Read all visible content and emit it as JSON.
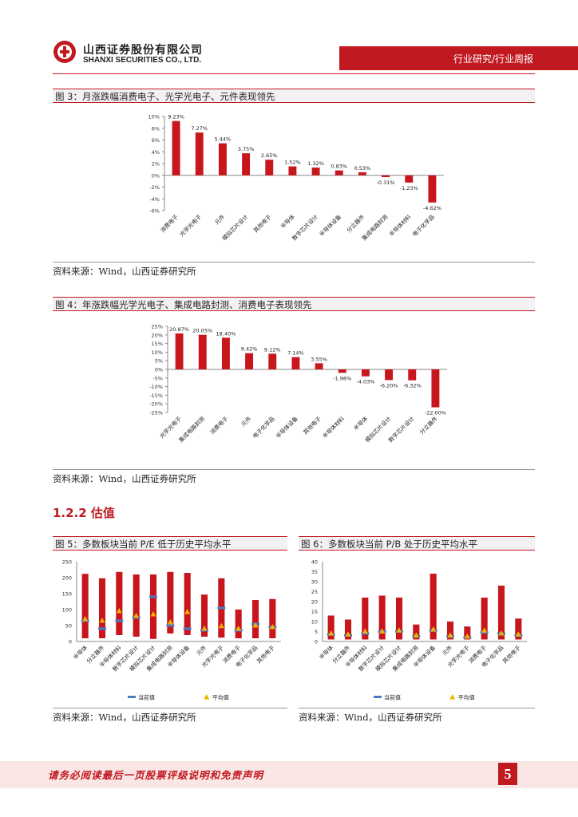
{
  "header": {
    "company_cn": "山西证券股份有限公司",
    "company_en": "SHANXI SECURITIES CO., LTD.",
    "category": "行业研究/行业周报"
  },
  "fig3": {
    "caption": "图 3：月涨跌幅消费电子、光学光电子、元件表现领先",
    "source": "资料来源：Wind，山西证券研究所"
  },
  "fig4": {
    "caption": "图 4：年涨跌幅光学光电子、集成电路封测、消费电子表现领先",
    "source": "资料来源：Wind，山西证券研究所"
  },
  "section": {
    "title": "1.2.2  估值"
  },
  "fig5": {
    "caption": "图 5：多数板块当前 P/E 低于历史平均水平",
    "source": "资料来源：Wind，山西证券研究所"
  },
  "fig6": {
    "caption": "图 6：多数板块当前 P/B 处于历史平均水平",
    "source": "资料来源：Wind，山西证券研究所"
  },
  "footer": {
    "disclaimer": "请务必阅读最后一页股票评级说明和免责声明",
    "page": "5"
  },
  "colors": {
    "brand_red": "#c01920",
    "bar_red": "#c8161d",
    "current_blue": "#4a7bc4",
    "avg_yellow": "#f0b400"
  },
  "icons": {
    "logo": "shanxi-securities-logo",
    "avg_marker": "triangle",
    "current_marker": "dash"
  },
  "chart_data": [
    {
      "id": "fig3",
      "type": "bar",
      "categories": [
        "消费电子",
        "光学光电子",
        "元件",
        "模拟芯片设计",
        "其他电子",
        "半导体",
        "数字芯片设计",
        "半导体设备",
        "分立器件",
        "集成电路封测",
        "半导体材料",
        "电子化学品"
      ],
      "values": [
        9.23,
        7.27,
        5.44,
        3.75,
        2.65,
        1.52,
        1.32,
        0.83,
        0.53,
        -0.31,
        -1.23,
        -4.62
      ],
      "labels": [
        "9.23%",
        "7.27%",
        "5.44%",
        "3.75%",
        "2.65%",
        "1.52%",
        "1.32%",
        "0.83%",
        "0.53%",
        "-0.31%",
        "-1.23%",
        "-4.62%"
      ],
      "yticks": [
        "10%",
        "8%",
        "6%",
        "4%",
        "2%",
        "0%",
        "-2%",
        "-4%",
        "-6%"
      ],
      "ylim": [
        -6,
        10
      ]
    },
    {
      "id": "fig4",
      "type": "bar",
      "categories": [
        "光学光电子",
        "集成电路封测",
        "消费电子",
        "元件",
        "电子化学品",
        "半导体设备",
        "其他电子",
        "半导体材料",
        "半导体",
        "模拟芯片设计",
        "数字芯片设计",
        "分立器件"
      ],
      "values": [
        20.87,
        20.05,
        18.4,
        9.42,
        9.12,
        7.14,
        3.55,
        -1.98,
        -4.03,
        -6.2,
        -6.32,
        -22.0
      ],
      "labels": [
        "20.87%",
        "20.05%",
        "18.40%",
        "9.42%",
        "9.12%",
        "7.14%",
        "3.55%",
        "-1.98%",
        "-4.03%",
        "-6.20%",
        "-6.32%",
        "-22.00%"
      ],
      "yticks": [
        "25%",
        "20%",
        "15%",
        "10%",
        "5%",
        "0%",
        "-5%",
        "-10%",
        "-15%",
        "-20%",
        "-25%"
      ],
      "ylim": [
        -25,
        25
      ]
    },
    {
      "id": "fig5",
      "type": "bar",
      "categories": [
        "半导体",
        "分立器件",
        "半导体材料",
        "数字芯片设计",
        "模拟芯片设计",
        "集成电路封测",
        "半导体设备",
        "元件",
        "光学光电子",
        "消费电子",
        "电子化学品",
        "其他电子"
      ],
      "range_low": [
        10,
        10,
        20,
        15,
        8,
        25,
        20,
        15,
        12,
        10,
        10,
        10
      ],
      "range_high": [
        212,
        198,
        218,
        210,
        210,
        218,
        215,
        147,
        198,
        100,
        130,
        133
      ],
      "current": [
        65,
        40,
        65,
        75,
        140,
        50,
        40,
        35,
        105,
        35,
        55,
        45
      ],
      "average": [
        70,
        65,
        95,
        80,
        85,
        60,
        92,
        40,
        48,
        40,
        50,
        45
      ],
      "legend": [
        "当前值",
        "平均值"
      ],
      "yticks": [
        "250",
        "200",
        "150",
        "100",
        "50",
        "0"
      ],
      "ylim": [
        0,
        250
      ]
    },
    {
      "id": "fig6",
      "type": "bar",
      "categories": [
        "半导体",
        "分立器件",
        "半导体材料",
        "数字芯片设计",
        "模拟芯片设计",
        "集成电路封测",
        "半导体设备",
        "元件",
        "光学光电子",
        "消费电子",
        "电子化学品",
        "其他电子"
      ],
      "range_low": [
        1,
        1,
        1,
        1,
        1,
        1,
        1,
        1,
        1,
        1,
        1,
        1
      ],
      "range_high": [
        13,
        11,
        22,
        23,
        22,
        8.5,
        34,
        10,
        7.5,
        22,
        28,
        11.5
      ],
      "current": [
        3.5,
        3,
        4,
        5,
        5,
        2.5,
        5.5,
        2.5,
        2,
        4.5,
        4,
        3
      ],
      "average": [
        4,
        3.5,
        5,
        5,
        5.5,
        3,
        6,
        3,
        2.5,
        5.5,
        4,
        3.5
      ],
      "legend": [
        "当前值",
        "平均值"
      ],
      "yticks": [
        "40",
        "35",
        "30",
        "25",
        "20",
        "15",
        "10",
        "5",
        "0"
      ],
      "ylim": [
        0,
        40
      ]
    }
  ]
}
